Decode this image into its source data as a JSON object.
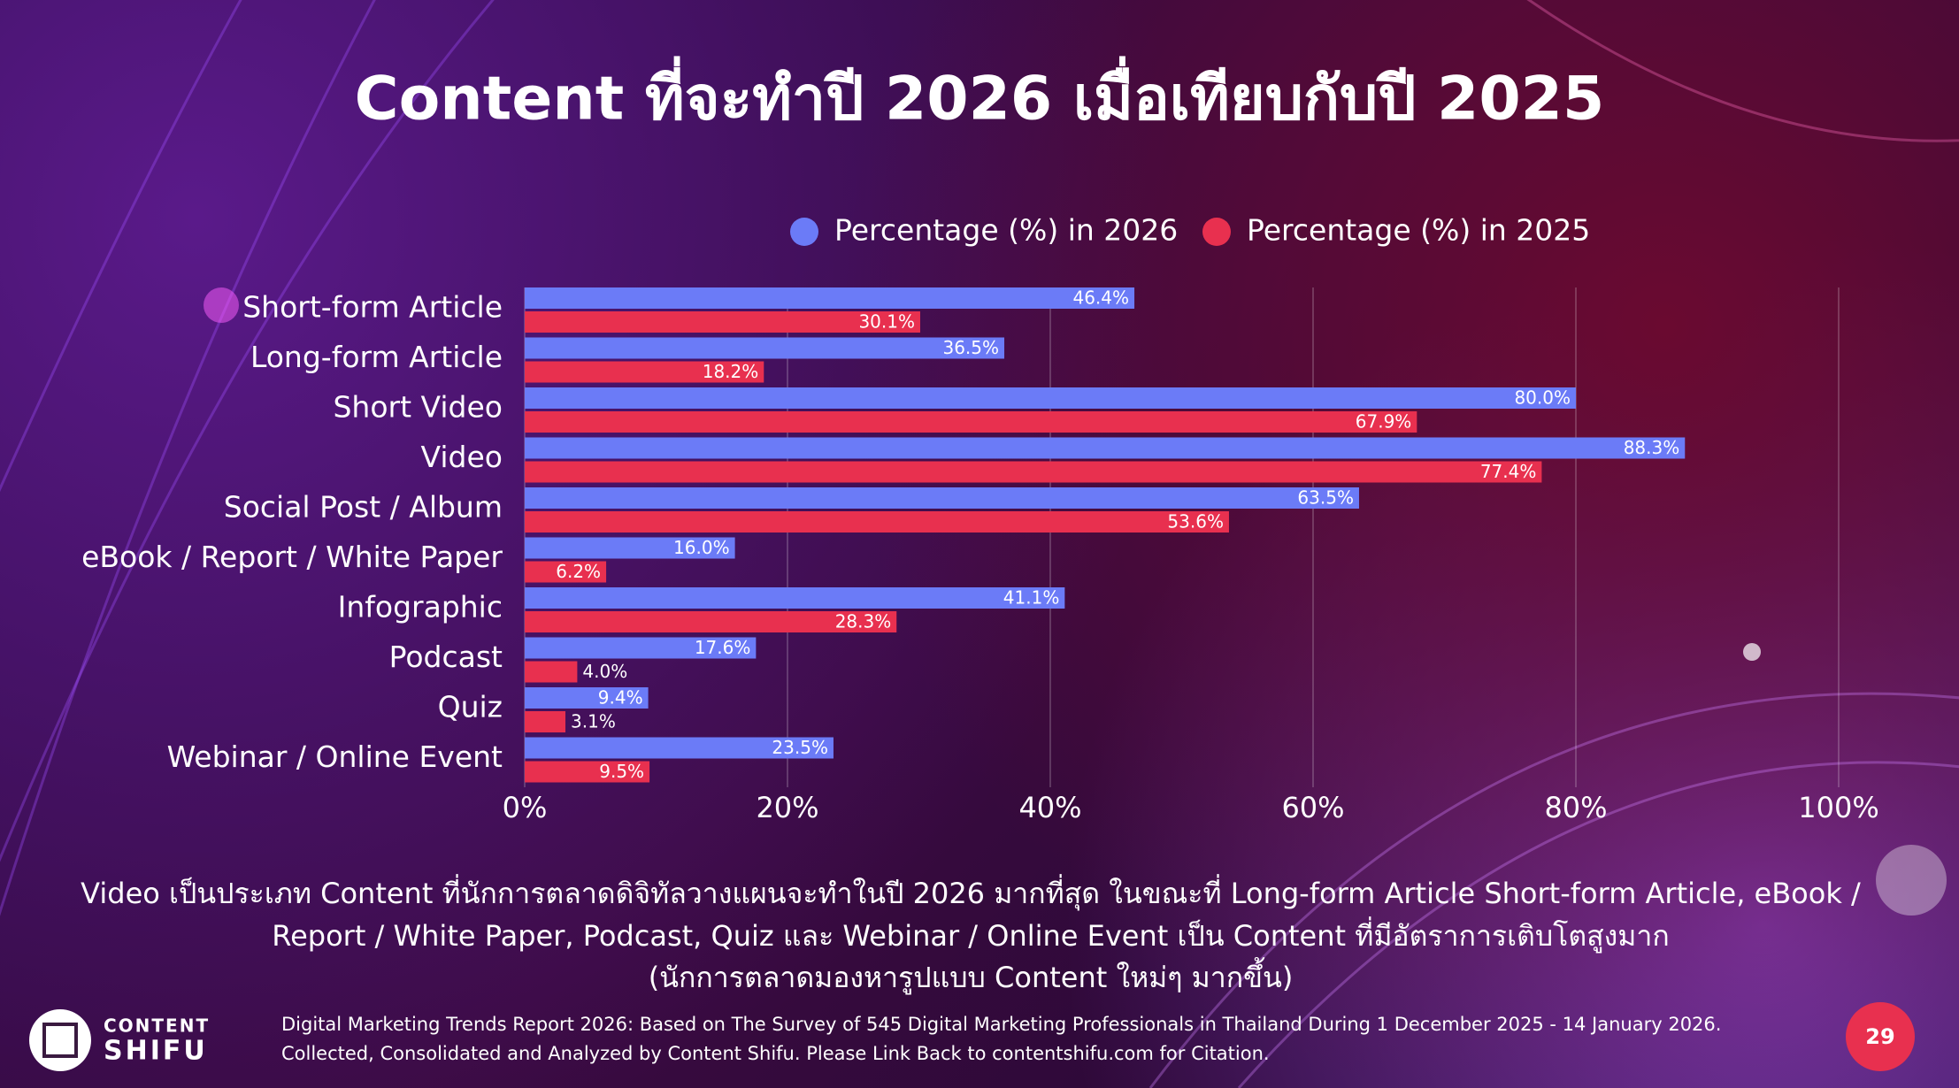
{
  "chart_data": {
    "type": "bar",
    "orientation": "horizontal",
    "title": "Content ที่จะทำปี 2026 เมื่อเทียบกับปี 2025",
    "categories": [
      "Short-form Article",
      "Long-form Article",
      "Short Video",
      "Video",
      "Social Post / Album",
      "eBook / Report / White Paper",
      "Infographic",
      "Podcast",
      "Quiz",
      "Webinar / Online Event"
    ],
    "series": [
      {
        "name": "Percentage (%) in 2026",
        "color": "#6b7bf7",
        "values": [
          46.4,
          36.5,
          80.0,
          88.3,
          63.5,
          16.0,
          41.1,
          17.6,
          9.4,
          23.5
        ],
        "value_labels": [
          "46.4%",
          "36.5%",
          "80.0%",
          "88.3%",
          "63.5%",
          "16.0%",
          "41.1%",
          "17.6%",
          "9.4%",
          "23.5%"
        ]
      },
      {
        "name": "Percentage (%) in 2025",
        "color": "#e8304f",
        "values": [
          30.1,
          18.2,
          67.9,
          77.4,
          53.6,
          6.2,
          28.3,
          4.0,
          3.1,
          9.5
        ],
        "value_labels": [
          "30.1%",
          "18.2%",
          "67.9%",
          "77.4%",
          "53.6%",
          "6.2%",
          "28.3%",
          "4.0%",
          "3.1%",
          "9.5%"
        ]
      }
    ],
    "xlim": [
      0,
      100
    ],
    "xticks": [
      {
        "value": 0,
        "label": "0%"
      },
      {
        "value": 20,
        "label": "20%"
      },
      {
        "value": 40,
        "label": "40%"
      },
      {
        "value": 60,
        "label": "60%"
      },
      {
        "value": 80,
        "label": "80%"
      },
      {
        "value": 100,
        "label": "100%"
      }
    ],
    "grid": true,
    "legend": "top"
  },
  "caption": [
    "Video เป็นประเภท Content ที่นักการตลาดดิจิทัลวางแผนจะทำในปี 2026 มากที่สุด ในขณะที่ Long-form Article Short-form Article, eBook /",
    "Report / White Paper, Podcast, Quiz และ Webinar / Online Event เป็น Content ที่มีอัตราการเติบโตสูงมาก",
    "(นักการตลาดมองหารูปแบบ Content ใหม่ๆ มากขึ้น)"
  ],
  "footer": [
    "Digital Marketing Trends Report 2026: Based on The Survey of 545 Digital Marketing Professionals in Thailand During 1 December 2025 - 14 January 2026.",
    "Collected, Consolidated and Analyzed by Content Shifu. Please Link Back to contentshifu.com for Citation."
  ],
  "logo": [
    "CONTENT",
    "SHIFU"
  ],
  "page_number": "29"
}
